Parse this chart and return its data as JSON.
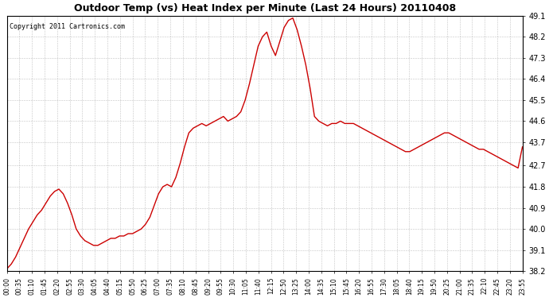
{
  "title": "Outdoor Temp (vs) Heat Index per Minute (Last 24 Hours) 20110408",
  "copyright": "Copyright 2011 Cartronics.com",
  "line_color": "#cc0000",
  "background_color": "#ffffff",
  "plot_bg_color": "#ffffff",
  "grid_color": "#aaaaaa",
  "ylim": [
    38.2,
    49.1
  ],
  "yticks": [
    38.2,
    39.1,
    40.0,
    40.9,
    41.8,
    42.7,
    43.7,
    44.6,
    45.5,
    46.4,
    47.3,
    48.2,
    49.1
  ],
  "xtick_labels": [
    "00:00",
    "00:35",
    "01:10",
    "01:45",
    "02:20",
    "02:55",
    "03:30",
    "04:05",
    "04:40",
    "05:15",
    "05:50",
    "06:25",
    "07:00",
    "07:35",
    "08:10",
    "08:45",
    "09:20",
    "09:55",
    "10:30",
    "11:05",
    "11:40",
    "12:15",
    "12:50",
    "13:25",
    "14:00",
    "14:35",
    "15:10",
    "15:45",
    "16:20",
    "16:55",
    "17:30",
    "18:05",
    "18:40",
    "19:15",
    "19:50",
    "20:25",
    "21:00",
    "21:35",
    "22:10",
    "22:45",
    "23:20",
    "23:55"
  ],
  "data_y": [
    38.3,
    38.5,
    38.8,
    39.2,
    39.6,
    40.0,
    40.3,
    40.6,
    40.8,
    41.1,
    41.4,
    41.6,
    41.7,
    41.5,
    41.1,
    40.6,
    40.0,
    39.7,
    39.5,
    39.4,
    39.3,
    39.3,
    39.4,
    39.5,
    39.6,
    39.6,
    39.7,
    39.7,
    39.8,
    39.8,
    39.9,
    40.0,
    40.2,
    40.5,
    41.0,
    41.5,
    41.8,
    41.9,
    41.8,
    42.2,
    42.8,
    43.5,
    44.1,
    44.3,
    44.4,
    44.5,
    44.4,
    44.5,
    44.6,
    44.7,
    44.8,
    44.6,
    44.7,
    44.8,
    45.0,
    45.5,
    46.2,
    47.0,
    47.8,
    48.2,
    48.4,
    47.8,
    47.4,
    48.0,
    48.6,
    48.9,
    49.0,
    48.5,
    47.8,
    47.0,
    46.0,
    44.8,
    44.6,
    44.5,
    44.4,
    44.5,
    44.5,
    44.6,
    44.5,
    44.5,
    44.5,
    44.4,
    44.3,
    44.2,
    44.1,
    44.0,
    43.9,
    43.8,
    43.7,
    43.6,
    43.5,
    43.4,
    43.3,
    43.3,
    43.4,
    43.5,
    43.6,
    43.7,
    43.8,
    43.9,
    44.0,
    44.1,
    44.1,
    44.0,
    43.9,
    43.8,
    43.7,
    43.6,
    43.5,
    43.4,
    43.4,
    43.3,
    43.2,
    43.1,
    43.0,
    42.9,
    42.8,
    42.7,
    42.6,
    43.5
  ]
}
